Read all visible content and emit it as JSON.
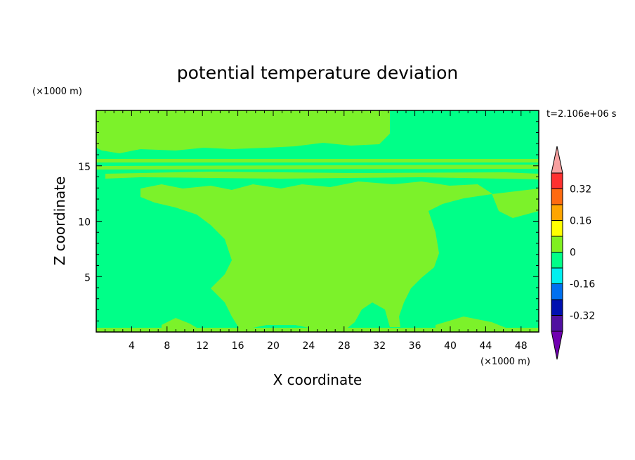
{
  "chart_data": {
    "type": "heatmap",
    "title": "potential temperature deviation",
    "xlabel": "X coordinate",
    "ylabel": "Z coordinate",
    "x_unit": "(×1000 m)",
    "y_unit": "(×1000 m)",
    "time_label": "t=2.106e+06 s",
    "xlim": [
      0,
      50
    ],
    "ylim": [
      0,
      20
    ],
    "x_ticks": [
      "4",
      "8",
      "12",
      "16",
      "20",
      "24",
      "28",
      "32",
      "36",
      "40",
      "44",
      "48"
    ],
    "y_ticks": [
      "5",
      "10",
      "15"
    ],
    "colorbar": {
      "tick_labels": [
        "0.32",
        "0.16",
        "0",
        "-0.16",
        "-0.32"
      ],
      "colors": [
        "#f8a0a0",
        "#ff3030",
        "#ff6a10",
        "#ffa500",
        "#ffff00",
        "#80f020",
        "#00ff88",
        "#00f0f0",
        "#0070f0",
        "#0010b0",
        "#5010a0",
        "#7000b0"
      ]
    },
    "field_colors": {
      "positive_small": "#7cf22a",
      "negative_small": "#00ff88"
    }
  }
}
